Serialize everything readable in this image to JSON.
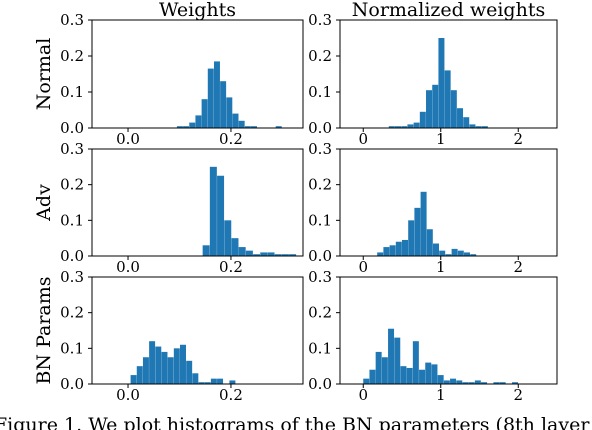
{
  "col_titles": [
    "Weights",
    "Normalized weights"
  ],
  "row_labels": [
    "Normal",
    "Adv",
    "BN Params"
  ],
  "caption": "Figure 1.  We plot histograms of the BN parameters (8th layer",
  "colors": {
    "bar": "#1f77b4",
    "axis": "#000000"
  },
  "chart_data": [
    {
      "type": "bar",
      "row": 0,
      "col": 0,
      "row_label": "Normal",
      "col_title": "Weights",
      "xlim": [
        -0.07,
        0.34
      ],
      "ylim": [
        0,
        0.3
      ],
      "xticks": [
        0.0,
        0.2
      ],
      "xtick_labels": [
        "0.0",
        "0.2"
      ],
      "yticks": [
        0.0,
        0.1,
        0.2,
        0.3
      ],
      "ytick_labels": [
        "0.0",
        "0.1",
        "0.2",
        "0.3"
      ],
      "bin_edges": [
        0.095,
        0.107,
        0.119,
        0.131,
        0.143,
        0.155,
        0.167,
        0.179,
        0.191,
        0.203,
        0.215,
        0.227,
        0.239,
        0.251,
        0.263,
        0.275,
        0.287,
        0.299,
        0.311
      ],
      "values": [
        0.005,
        0.005,
        0.015,
        0.035,
        0.08,
        0.165,
        0.185,
        0.13,
        0.085,
        0.04,
        0.02,
        0.005,
        0.005,
        0,
        0,
        0,
        0.005,
        0
      ]
    },
    {
      "type": "bar",
      "row": 0,
      "col": 1,
      "row_label": "Normal",
      "col_title": "Normalized weights",
      "xlim": [
        -0.3,
        2.5
      ],
      "ylim": [
        0,
        0.3
      ],
      "xticks": [
        0,
        1,
        2
      ],
      "xtick_labels": [
        "0",
        "1",
        "2"
      ],
      "yticks": [
        0.0,
        0.1,
        0.2,
        0.3
      ],
      "ytick_labels": [
        "0.0",
        "0.1",
        "0.2",
        "0.3"
      ],
      "bin_edges": [
        0.33,
        0.41,
        0.49,
        0.57,
        0.65,
        0.73,
        0.81,
        0.89,
        0.97,
        1.05,
        1.13,
        1.21,
        1.29,
        1.37,
        1.45,
        1.53,
        1.61
      ],
      "values": [
        0.005,
        0.005,
        0.005,
        0.01,
        0.015,
        0.045,
        0.105,
        0.12,
        0.25,
        0.16,
        0.105,
        0.055,
        0.03,
        0.01,
        0.005,
        0.005
      ]
    },
    {
      "type": "bar",
      "row": 1,
      "col": 0,
      "row_label": "Adv",
      "col_title": "Weights",
      "xlim": [
        -0.07,
        0.34
      ],
      "ylim": [
        0,
        0.3
      ],
      "xticks": [
        0.0,
        0.2
      ],
      "xtick_labels": [
        "0.0",
        "0.2"
      ],
      "yticks": [
        0.0,
        0.1,
        0.2,
        0.3
      ],
      "ytick_labels": [
        "0.0",
        "0.1",
        "0.2",
        "0.3"
      ],
      "bin_edges": [
        0.145,
        0.159,
        0.173,
        0.187,
        0.201,
        0.215,
        0.229,
        0.243,
        0.257,
        0.271,
        0.285,
        0.299,
        0.313,
        0.327
      ],
      "values": [
        0.03,
        0.25,
        0.225,
        0.1,
        0.05,
        0.025,
        0.015,
        0.005,
        0.01,
        0.01,
        0.005,
        0.005,
        0.005
      ]
    },
    {
      "type": "bar",
      "row": 1,
      "col": 1,
      "row_label": "Adv",
      "col_title": "Normalized weights",
      "xlim": [
        -0.3,
        2.5
      ],
      "ylim": [
        0,
        0.3
      ],
      "xticks": [
        0,
        1,
        2
      ],
      "xtick_labels": [
        "0",
        "1",
        "2"
      ],
      "yticks": [
        0.0,
        0.1,
        0.2,
        0.3
      ],
      "ytick_labels": [
        "0.0",
        "0.1",
        "0.2",
        "0.3"
      ],
      "bin_edges": [
        0.18,
        0.26,
        0.34,
        0.42,
        0.5,
        0.58,
        0.66,
        0.74,
        0.82,
        0.9,
        0.98,
        1.06,
        1.14,
        1.22,
        1.3,
        1.38,
        1.46
      ],
      "values": [
        0.01,
        0.025,
        0.03,
        0.04,
        0.045,
        0.1,
        0.135,
        0.18,
        0.075,
        0.035,
        0.015,
        0.005,
        0.02,
        0.015,
        0.01,
        0.005
      ]
    },
    {
      "type": "bar",
      "row": 2,
      "col": 0,
      "row_label": "BN Params",
      "col_title": "Weights",
      "xlim": [
        -0.07,
        0.34
      ],
      "ylim": [
        0,
        0.3
      ],
      "xticks": [
        0.0,
        0.2
      ],
      "xtick_labels": [
        "0.0",
        "0.2"
      ],
      "yticks": [
        0.0,
        0.1,
        0.2,
        0.3
      ],
      "ytick_labels": [
        "0.0",
        "0.1",
        "0.2",
        "0.3"
      ],
      "bin_edges": [
        0.005,
        0.017,
        0.029,
        0.041,
        0.053,
        0.065,
        0.077,
        0.089,
        0.101,
        0.113,
        0.125,
        0.137,
        0.149,
        0.161,
        0.173,
        0.185,
        0.197,
        0.209
      ],
      "values": [
        0.025,
        0.05,
        0.075,
        0.12,
        0.105,
        0.09,
        0.075,
        0.1,
        0.11,
        0.065,
        0.03,
        0.005,
        0.005,
        0.015,
        0.015,
        0,
        0.01
      ]
    },
    {
      "type": "bar",
      "row": 2,
      "col": 1,
      "row_label": "BN Params",
      "col_title": "Normalized weights",
      "xlim": [
        -0.3,
        2.5
      ],
      "ylim": [
        0,
        0.3
      ],
      "xticks": [
        0,
        1,
        2
      ],
      "xtick_labels": [
        "0",
        "1",
        "2"
      ],
      "yticks": [
        0.0,
        0.1,
        0.2,
        0.3
      ],
      "ytick_labels": [
        "0.0",
        "0.1",
        "0.2",
        "0.3"
      ],
      "bin_edges": [
        0.0,
        0.08,
        0.16,
        0.24,
        0.32,
        0.4,
        0.48,
        0.56,
        0.64,
        0.72,
        0.8,
        0.88,
        0.96,
        1.04,
        1.12,
        1.2,
        1.28,
        1.36,
        1.44,
        1.52,
        1.6,
        1.68,
        1.76,
        1.84,
        1.92,
        2.0
      ],
      "values": [
        0.015,
        0.04,
        0.09,
        0.075,
        0.155,
        0.13,
        0.05,
        0.045,
        0.12,
        0.04,
        0.06,
        0.055,
        0.025,
        0.01,
        0.015,
        0.01,
        0.005,
        0.005,
        0.01,
        0.005,
        0,
        0.005,
        0.005,
        0,
        0.005
      ]
    }
  ]
}
